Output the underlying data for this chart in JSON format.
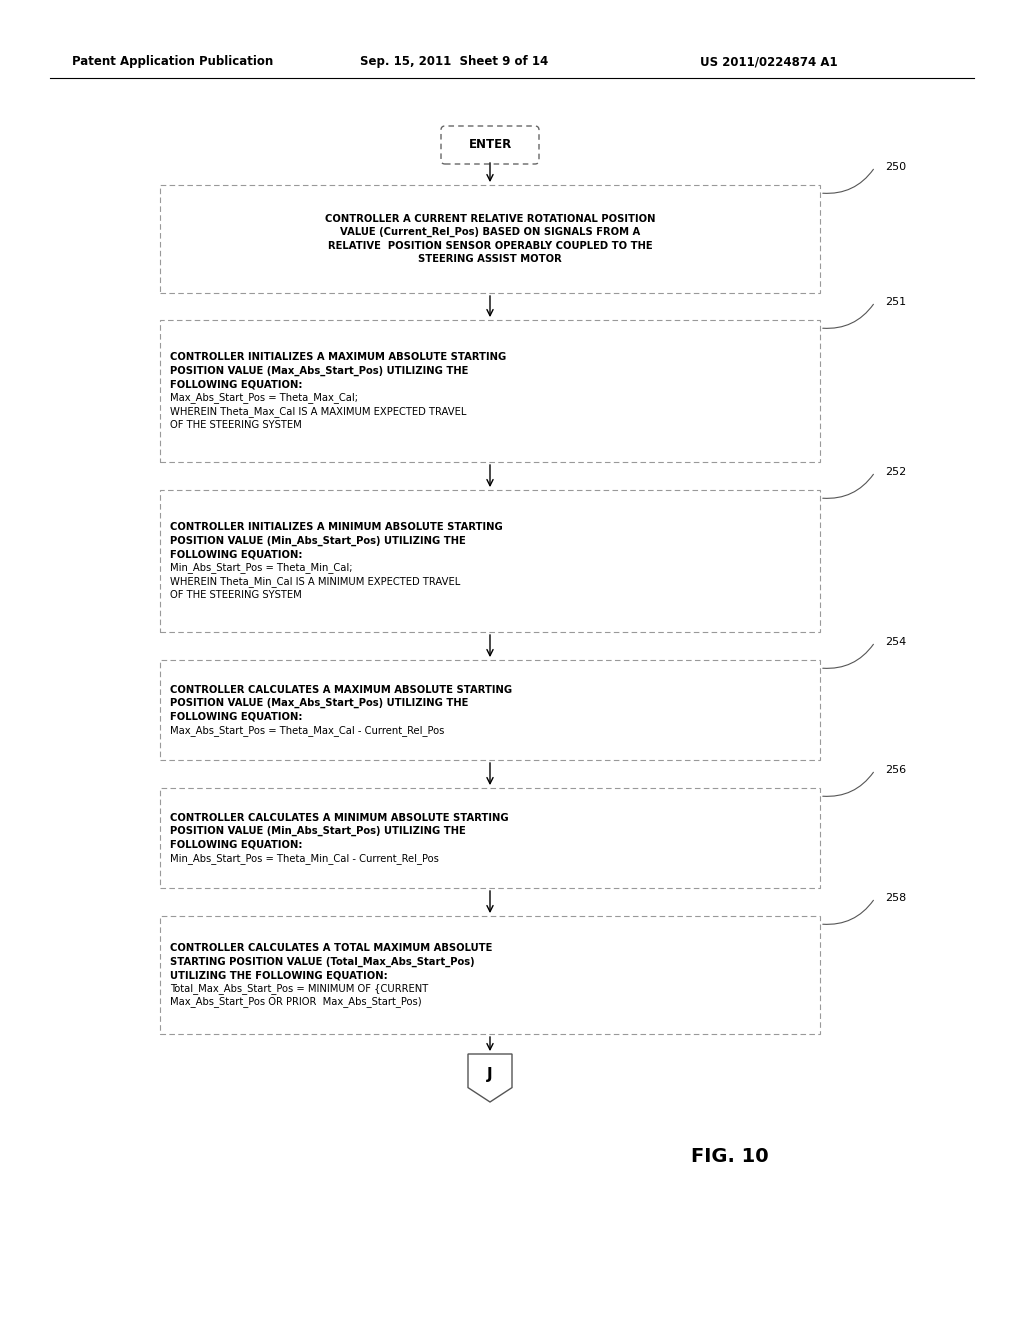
{
  "header_left": "Patent Application Publication",
  "header_mid": "Sep. 15, 2011  Sheet 9 of 14",
  "header_right": "US 2011/0224874 A1",
  "figure_label": "FIG. 10",
  "enter_label": "ENTER",
  "terminal_label": "J",
  "boxes": [
    {
      "id": "250",
      "center": true,
      "lines": [
        {
          "text": "CONTROLLER A CURRENT RELATIVE ROTATIONAL POSITION",
          "bold": true
        },
        {
          "text": "VALUE (Current_Rel_Pos) BASED ON SIGNALS FROM A",
          "bold": true
        },
        {
          "text": "RELATIVE  POSITION SENSOR OPERABLY COUPLED TO THE",
          "bold": true
        },
        {
          "text": "STEERING ASSIST MOTOR",
          "bold": true
        }
      ]
    },
    {
      "id": "251",
      "center": false,
      "lines": [
        {
          "text": "CONTROLLER INITIALIZES A MAXIMUM ABSOLUTE STARTING",
          "bold": true
        },
        {
          "text": "POSITION VALUE (Max_Abs_Start_Pos) UTILIZING THE",
          "bold": true
        },
        {
          "text": "FOLLOWING EQUATION:",
          "bold": true
        },
        {
          "text": "Max_Abs_Start_Pos = Theta_Max_Cal;",
          "bold": false
        },
        {
          "text": "WHEREIN Theta_Max_Cal IS A MAXIMUM EXPECTED TRAVEL",
          "bold": false
        },
        {
          "text": "OF THE STEERING SYSTEM",
          "bold": false
        }
      ]
    },
    {
      "id": "252",
      "center": false,
      "lines": [
        {
          "text": "CONTROLLER INITIALIZES A MINIMUM ABSOLUTE STARTING",
          "bold": true
        },
        {
          "text": "POSITION VALUE (Min_Abs_Start_Pos) UTILIZING THE",
          "bold": true
        },
        {
          "text": "FOLLOWING EQUATION:",
          "bold": true
        },
        {
          "text": "Min_Abs_Start_Pos = Theta_Min_Cal;",
          "bold": false
        },
        {
          "text": "WHEREIN Theta_Min_Cal IS A MINIMUM EXPECTED TRAVEL",
          "bold": false
        },
        {
          "text": "OF THE STEERING SYSTEM",
          "bold": false
        }
      ]
    },
    {
      "id": "254",
      "center": false,
      "lines": [
        {
          "text": "CONTROLLER CALCULATES A MAXIMUM ABSOLUTE STARTING",
          "bold": true
        },
        {
          "text": "POSITION VALUE (Max_Abs_Start_Pos) UTILIZING THE",
          "bold": true
        },
        {
          "text": "FOLLOWING EQUATION:",
          "bold": true
        },
        {
          "text": "Max_Abs_Start_Pos = Theta_Max_Cal - Current_Rel_Pos",
          "bold": false
        }
      ]
    },
    {
      "id": "256",
      "center": false,
      "lines": [
        {
          "text": "CONTROLLER CALCULATES A MINIMUM ABSOLUTE STARTING",
          "bold": true
        },
        {
          "text": "POSITION VALUE (Min_Abs_Start_Pos) UTILIZING THE",
          "bold": true
        },
        {
          "text": "FOLLOWING EQUATION:",
          "bold": true
        },
        {
          "text": "Min_Abs_Start_Pos = Theta_Min_Cal - Current_Rel_Pos",
          "bold": false
        }
      ]
    },
    {
      "id": "258",
      "center": false,
      "lines": [
        {
          "text": "CONTROLLER CALCULATES A TOTAL MAXIMUM ABSOLUTE",
          "bold": true
        },
        {
          "text": "STARTING POSITION VALUE (Total_Max_Abs_Start_Pos)",
          "bold": true
        },
        {
          "text": "UTILIZING THE FOLLOWING EQUATION:",
          "bold": true
        },
        {
          "text": "Total_Max_Abs_Start_Pos = MINIMUM OF {CURRENT",
          "bold": false
        },
        {
          "text": "Max_Abs_Start_Pos OR PRIOR  Max_Abs_Start_Pos)",
          "bold": false
        }
      ]
    }
  ],
  "bg_color": "#ffffff",
  "box_edge_color": "#999999",
  "text_color": "#000000",
  "header_color": "#000000",
  "arrow_color": "#000000"
}
